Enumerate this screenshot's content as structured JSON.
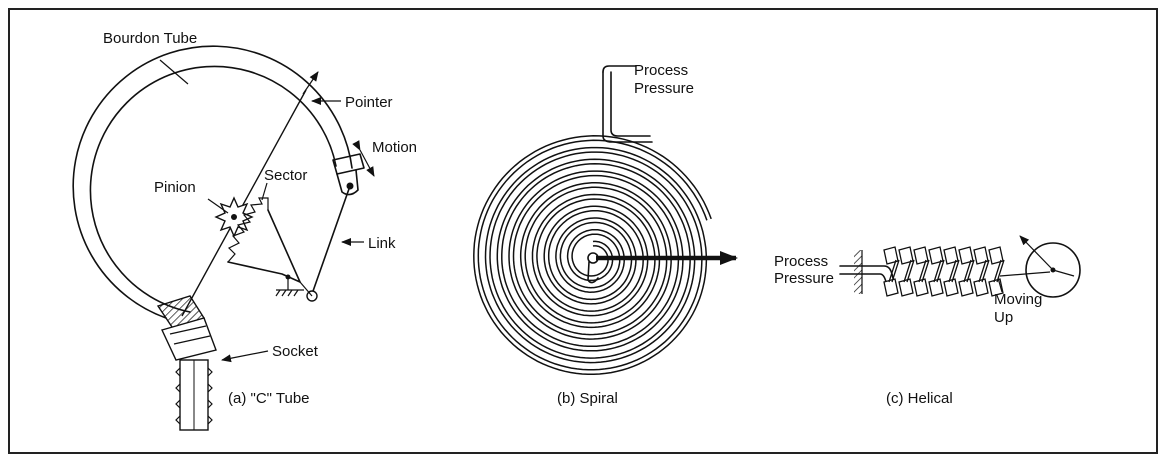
{
  "panel_a": {
    "caption": "(a)  \"C\" Tube",
    "labels": {
      "bourdon_tube": "Bourdon Tube",
      "pointer": "Pointer",
      "motion": "Motion",
      "pinion": "Pinion",
      "sector": "Sector",
      "link": "Link",
      "socket": "Socket"
    }
  },
  "panel_b": {
    "caption": "(b)  Spiral",
    "labels": {
      "process_pressure_1": "Process",
      "process_pressure_2": "Pressure"
    }
  },
  "panel_c": {
    "caption": "(c)  Helical",
    "labels": {
      "process_pressure_1": "Process",
      "process_pressure_2": "Pressure",
      "moving_1": "Moving",
      "moving_2": "Up"
    }
  }
}
